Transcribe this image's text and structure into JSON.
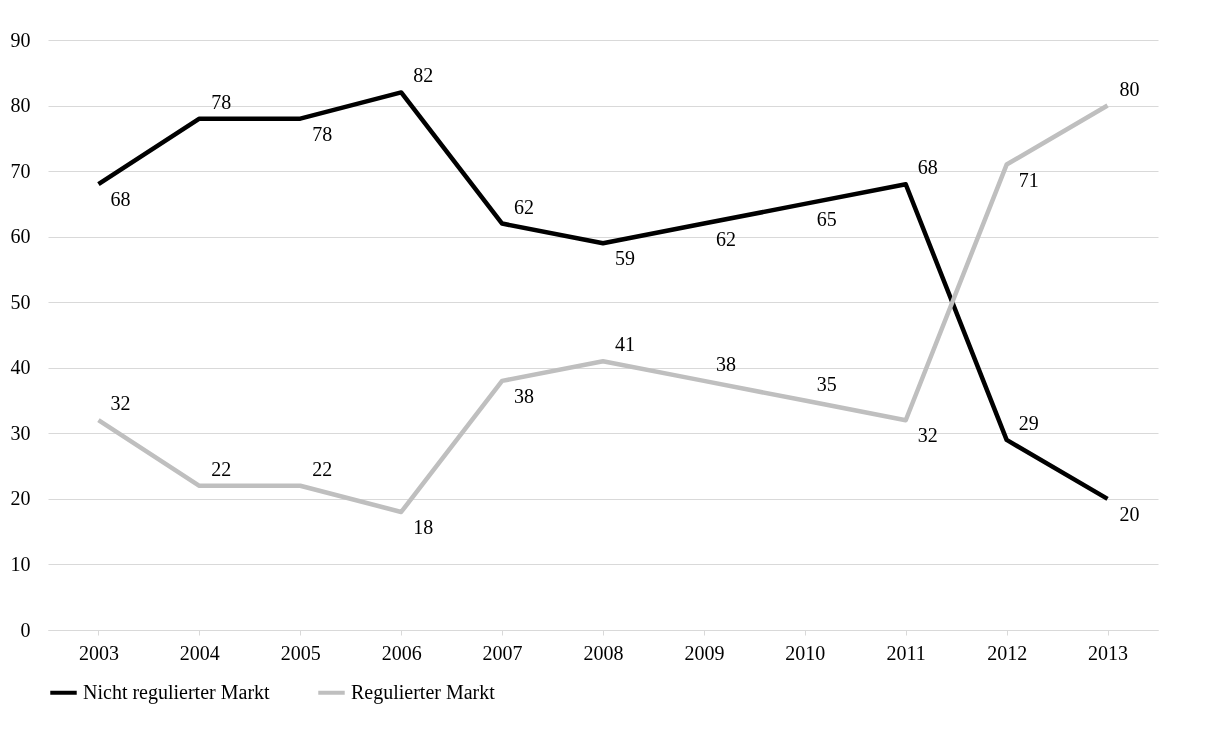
{
  "chart_data": {
    "type": "line",
    "categories": [
      "2003",
      "2004",
      "2005",
      "2006",
      "2007",
      "2008",
      "2009",
      "2010",
      "2011",
      "2012",
      "2013"
    ],
    "series": [
      {
        "name": "Nicht regulierter Markt",
        "color": "#000000",
        "values": [
          68,
          78,
          78,
          82,
          62,
          59,
          62,
          65,
          68,
          29,
          20
        ]
      },
      {
        "name": "Regulierter Markt",
        "color": "#bfbfbf",
        "values": [
          32,
          22,
          22,
          18,
          38,
          41,
          38,
          35,
          32,
          71,
          80
        ]
      }
    ],
    "ylim": [
      0,
      90
    ],
    "yticks": [
      0,
      10,
      20,
      30,
      40,
      50,
      60,
      70,
      80,
      90
    ],
    "grid": "y",
    "legend": "bottom",
    "data_labels": true,
    "line_style": "solid"
  }
}
